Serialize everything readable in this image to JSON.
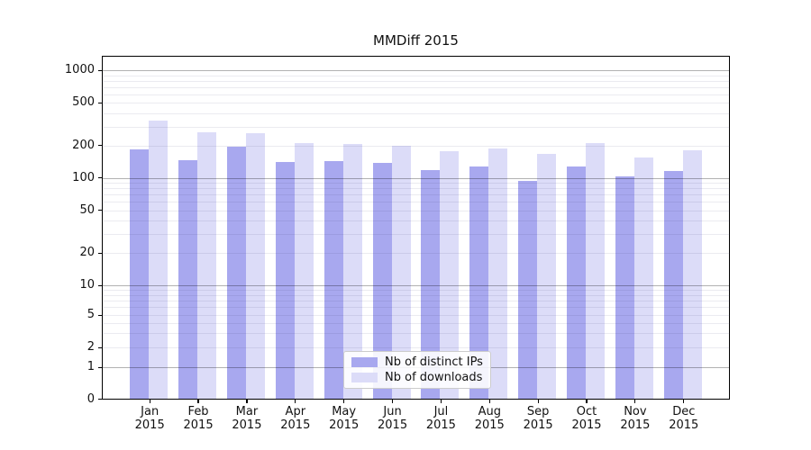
{
  "title": "MMDiff 2015",
  "legend": {
    "entries": [
      {
        "label": "Nb of distinct IPs",
        "color": "#a8a8ef"
      },
      {
        "label": "Nb of downloads",
        "color": "#dcdcf8"
      }
    ]
  },
  "chart_data": {
    "type": "bar",
    "title": "MMDiff 2015",
    "categories": [
      "Jan",
      "Feb",
      "Mar",
      "Apr",
      "May",
      "Jun",
      "Jul",
      "Aug",
      "Sep",
      "Oct",
      "Nov",
      "Dec"
    ],
    "year_label": "2015",
    "series": [
      {
        "name": "Nb of distinct IPs",
        "color": "#a8a8ef",
        "values": [
          184,
          147,
          197,
          142,
          143,
          138,
          118,
          127,
          94,
          127,
          103,
          117
        ]
      },
      {
        "name": "Nb of downloads",
        "color": "#dcdcf8",
        "values": [
          341,
          264,
          259,
          213,
          207,
          201,
          176,
          187,
          169,
          213,
          155,
          182
        ]
      }
    ],
    "yscale": "symlog",
    "y_tick_values": [
      0,
      1,
      2,
      5,
      10,
      20,
      50,
      100,
      200,
      500,
      1000
    ],
    "ylim": [
      0,
      1400
    ],
    "grid": "on",
    "legend_position": "lower center",
    "xlabel": "",
    "ylabel": ""
  }
}
